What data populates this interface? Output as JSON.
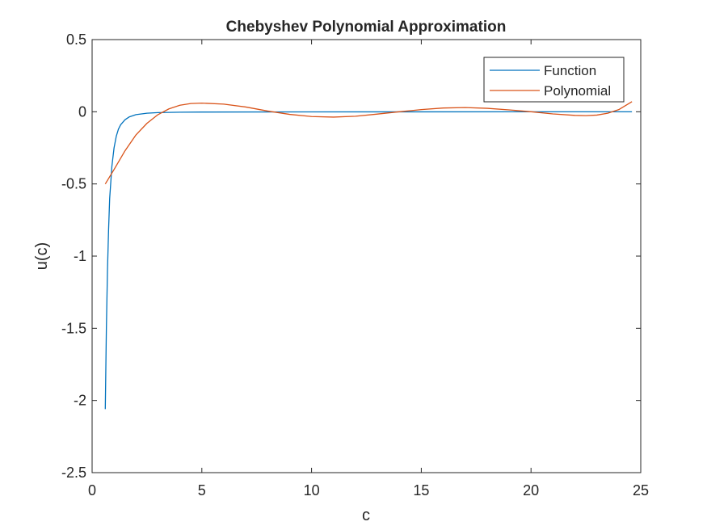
{
  "chart_data": {
    "type": "line",
    "title": "Chebyshev Polynomial Approximation",
    "xlabel": "c",
    "ylabel": "u(c)",
    "xlim": [
      0,
      25
    ],
    "ylim": [
      -2.5,
      0.5
    ],
    "xticks": [
      0,
      5,
      10,
      15,
      20,
      25
    ],
    "xtick_labels": [
      "0",
      "5",
      "10",
      "15",
      "20",
      "25"
    ],
    "yticks": [
      -2.5,
      -2,
      -1.5,
      -1,
      -0.5,
      0,
      0.5
    ],
    "ytick_labels": [
      "-2.5",
      "-2",
      "-1.5",
      "-1",
      "-0.5",
      "0",
      "0.5"
    ],
    "grid": false,
    "legend": {
      "location": "top-right",
      "entries": [
        "Function",
        "Polynomial"
      ]
    },
    "series": [
      {
        "name": "Function",
        "color": "#0072BD",
        "x": [
          0.6,
          0.65,
          0.7,
          0.75,
          0.8,
          0.9,
          1.0,
          1.1,
          1.2,
          1.3,
          1.5,
          1.7,
          2.0,
          2.5,
          3.0,
          4.0,
          5.0,
          10.0,
          15.0,
          20.0,
          24.6
        ],
        "y": [
          -2.06,
          -1.5,
          -1.1,
          -0.82,
          -0.6,
          -0.38,
          -0.25,
          -0.17,
          -0.12,
          -0.09,
          -0.055,
          -0.035,
          -0.02,
          -0.01,
          -0.006,
          -0.003,
          -0.002,
          -0.001,
          -0.0005,
          -0.0003,
          -0.0002
        ]
      },
      {
        "name": "Polynomial",
        "color": "#D95319",
        "x": [
          0.6,
          1.0,
          1.5,
          2.0,
          2.5,
          3.0,
          3.5,
          4.0,
          4.5,
          5.0,
          6.0,
          7.0,
          8.0,
          9.0,
          10.0,
          11.0,
          12.0,
          13.0,
          14.0,
          15.0,
          16.0,
          17.0,
          18.0,
          19.0,
          20.0,
          21.0,
          22.0,
          22.5,
          23.0,
          23.5,
          24.0,
          24.6
        ],
        "y": [
          -0.5,
          -0.4,
          -0.27,
          -0.16,
          -0.08,
          -0.02,
          0.02,
          0.045,
          0.057,
          0.06,
          0.053,
          0.033,
          0.005,
          -0.018,
          -0.033,
          -0.037,
          -0.031,
          -0.016,
          0.0,
          0.015,
          0.026,
          0.029,
          0.024,
          0.013,
          0.0,
          -0.015,
          -0.025,
          -0.027,
          -0.023,
          -0.01,
          0.015,
          0.07
        ]
      }
    ]
  }
}
